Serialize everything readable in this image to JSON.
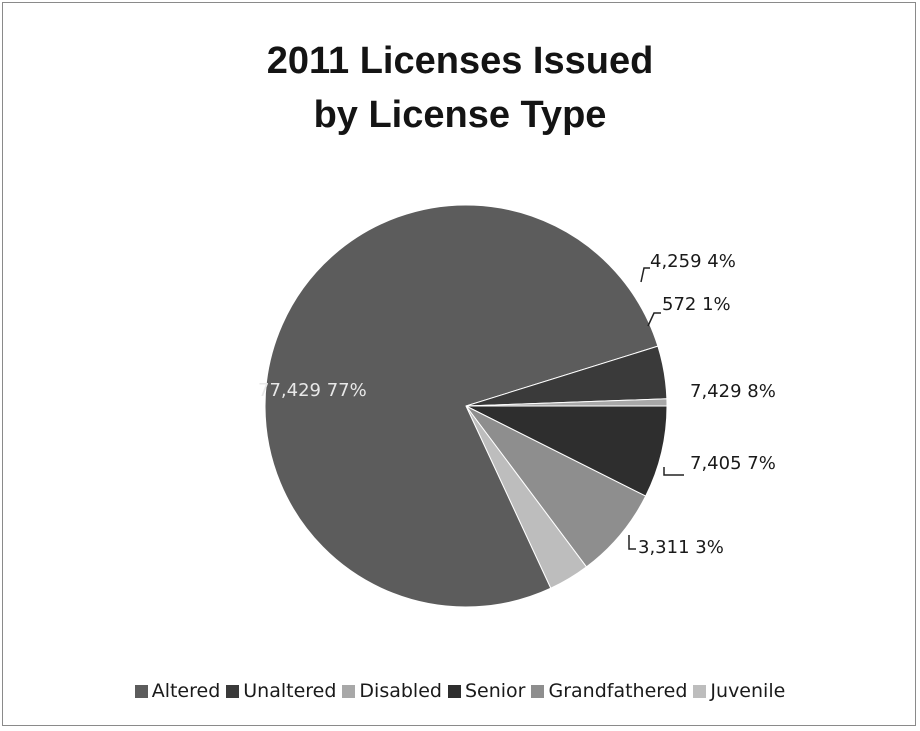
{
  "chart_data": {
    "type": "pie",
    "title": [
      "2011 Licenses Issued",
      "by License Type"
    ],
    "legend_position": "bottom",
    "categories": [
      "Altered",
      "Unaltered",
      "Disabled",
      "Senior",
      "Grandfathered",
      "Juvenile"
    ],
    "values": [
      77429,
      4259,
      572,
      7429,
      7405,
      3311
    ],
    "percent_labels": [
      "77%",
      "4%",
      "1%",
      "8%",
      "7%",
      "3%"
    ],
    "value_labels": [
      "77,429",
      "4,259",
      "572",
      "7,429",
      "7,405",
      "3,311"
    ],
    "colors": [
      "#5c5c5c",
      "#3a3a3a",
      "#a8a8a8",
      "#2e2e2e",
      "#8e8e8e",
      "#bdbdbd"
    ],
    "legend_order": [
      "Altered",
      "Unaltered",
      "Disabled",
      "Senior",
      "Grandfathered",
      "Juvenile"
    ]
  }
}
